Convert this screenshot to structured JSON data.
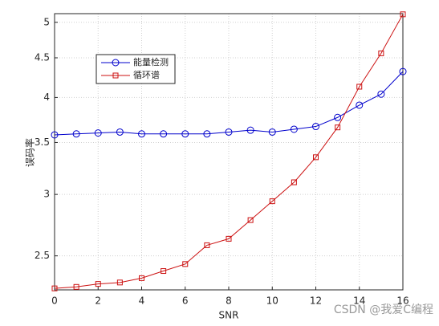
{
  "chart_data": {
    "type": "line",
    "x_label": "SNR",
    "y_label": "误码率",
    "x": [
      0,
      1,
      2,
      3,
      4,
      5,
      6,
      7,
      8,
      9,
      10,
      11,
      12,
      13,
      14,
      15,
      16
    ],
    "series": [
      {
        "name": "能量检测",
        "color": "#0000cc",
        "marker": "circle",
        "values": [
          3.58,
          3.59,
          3.6,
          3.61,
          3.59,
          3.59,
          3.59,
          3.59,
          3.61,
          3.63,
          3.61,
          3.64,
          3.67,
          3.77,
          3.91,
          4.04,
          4.32
        ]
      },
      {
        "name": "循环谱",
        "color": "#cc1111",
        "marker": "square",
        "values": [
          2.27,
          2.28,
          2.3,
          2.31,
          2.34,
          2.39,
          2.44,
          2.58,
          2.63,
          2.78,
          2.94,
          3.11,
          3.35,
          3.66,
          4.13,
          4.56,
          5.12
        ]
      }
    ],
    "xlim": [
      0,
      16
    ],
    "xticks": [
      0,
      2,
      4,
      6,
      8,
      10,
      12,
      14,
      16
    ],
    "ylim": [
      2.26,
      5.13
    ],
    "yticks": [
      2.5,
      3,
      3.5,
      4,
      4.5,
      5
    ],
    "y_log": true,
    "grid": true,
    "legend": "upper left",
    "watermark": "CSDN @我爱C编程"
  }
}
